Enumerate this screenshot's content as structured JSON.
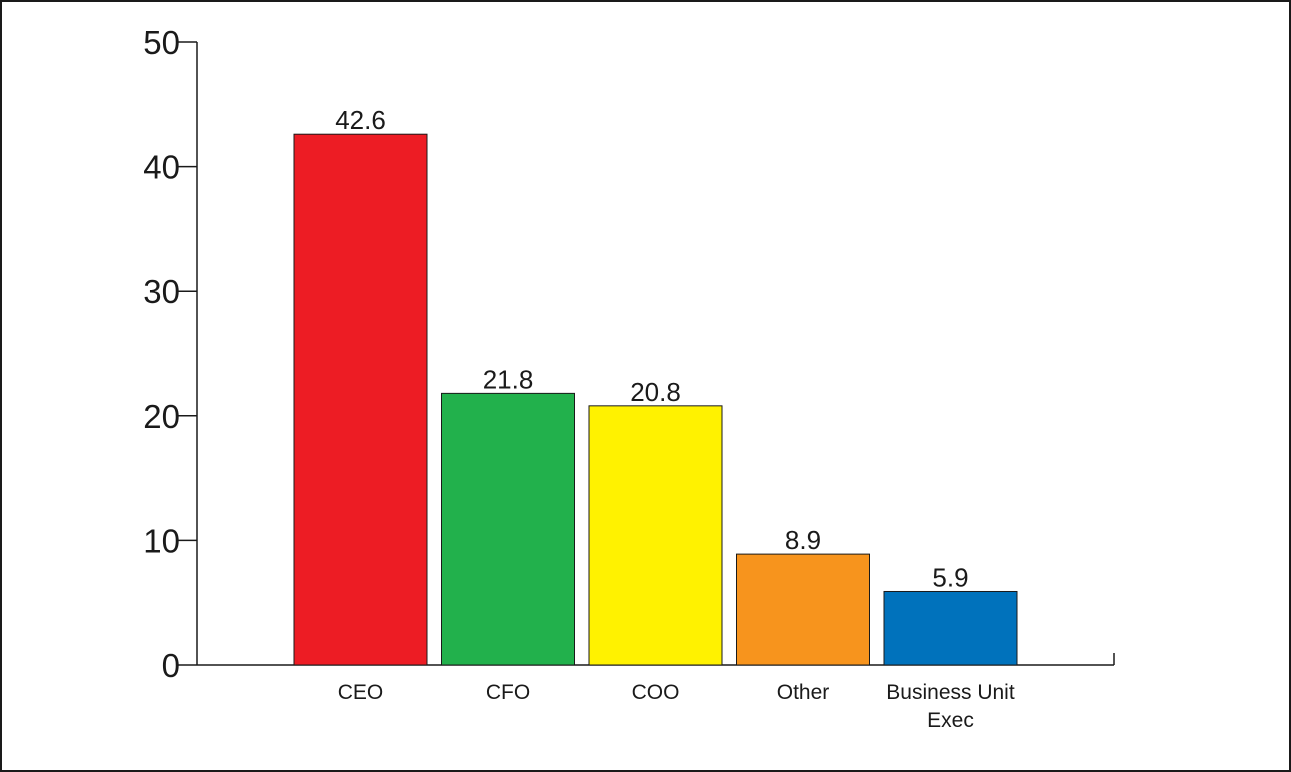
{
  "chart_data": {
    "type": "bar",
    "categories": [
      "CEO",
      "CFO",
      "COO",
      "Other",
      "Business Unit Exec"
    ],
    "values": [
      42.6,
      21.8,
      20.8,
      8.9,
      5.9
    ],
    "data_labels": [
      "42.6",
      "21.8",
      "20.8",
      "8.9",
      "5.9"
    ],
    "colors": [
      "#ed1c24",
      "#22b14c",
      "#fff200",
      "#f7941d",
      "#0072bc"
    ],
    "title": "",
    "xlabel": "",
    "ylabel": "",
    "ylim": [
      0,
      50
    ],
    "yticks": [
      0,
      10,
      20,
      30,
      40,
      50
    ],
    "ytick_labels": [
      "0",
      "10",
      "20",
      "30",
      "40",
      "50"
    ],
    "grid": false,
    "legend": "none"
  }
}
